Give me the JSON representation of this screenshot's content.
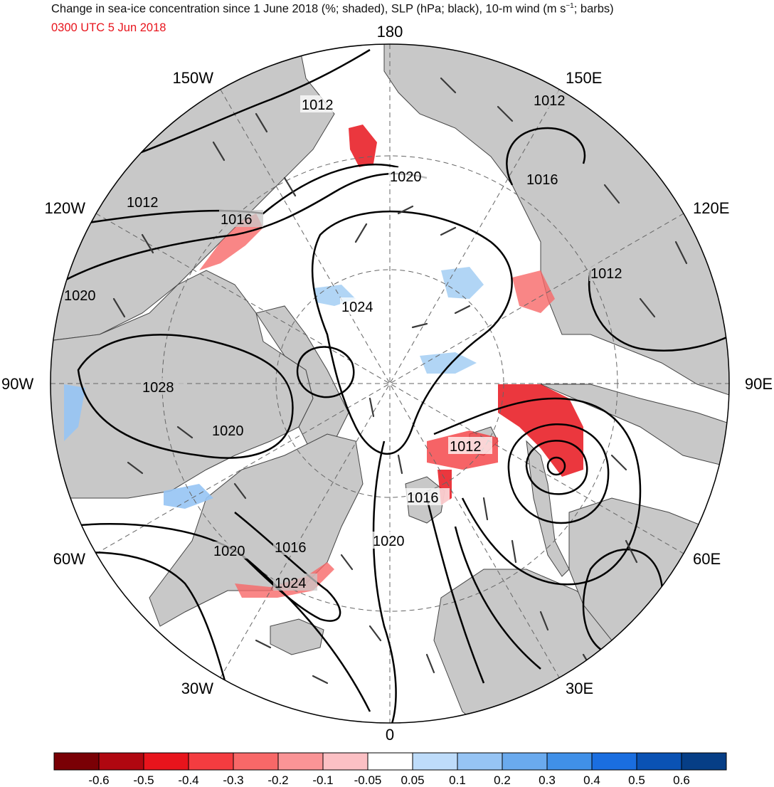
{
  "title": {
    "text_before": "Change in sea-ice concentration since 1 June 2018 (%; shaded), SLP (hPa; black), 10-m wind (m s",
    "sup": "−1",
    "text_after": "; barbs)"
  },
  "subtitle": {
    "text": "0300 UTC 5 Jun 2018",
    "color": "#e8141c"
  },
  "longitude_labels": [
    "180",
    "150E",
    "120E",
    "90E",
    "60E",
    "30E",
    "0",
    "30W",
    "60W",
    "90W",
    "120W",
    "150W"
  ],
  "isobar_labels": [
    "1012",
    "1012",
    "1016",
    "1012",
    "1012",
    "1016",
    "1020",
    "1020",
    "1024",
    "1028",
    "1020",
    "1012",
    "1016",
    "1020",
    "1016",
    "1020",
    "1024"
  ],
  "colors": {
    "land": "#c8c8c8",
    "ocean": "#ffffff",
    "isobar": "#000000",
    "barb": "#3a3a3a",
    "ice_loss": "#f04048",
    "ice_gain": "#a8d0f4"
  },
  "colorbar": {
    "colors": [
      "#7a0005",
      "#b00710",
      "#e8141c",
      "#f43c40",
      "#f86868",
      "#fa9496",
      "#fcc0c4",
      "#ffffff",
      "#bedcfa",
      "#96c4f4",
      "#6aaaee",
      "#4090e8",
      "#1a6ee0",
      "#0a52b4",
      "#063e86"
    ],
    "tick_labels": [
      "-0.6",
      "-0.5",
      "-0.4",
      "-0.3",
      "-0.2",
      "-0.1",
      "-0.05",
      "0.05",
      "0.1",
      "0.2",
      "0.3",
      "0.4",
      "0.5",
      "0.6"
    ]
  }
}
